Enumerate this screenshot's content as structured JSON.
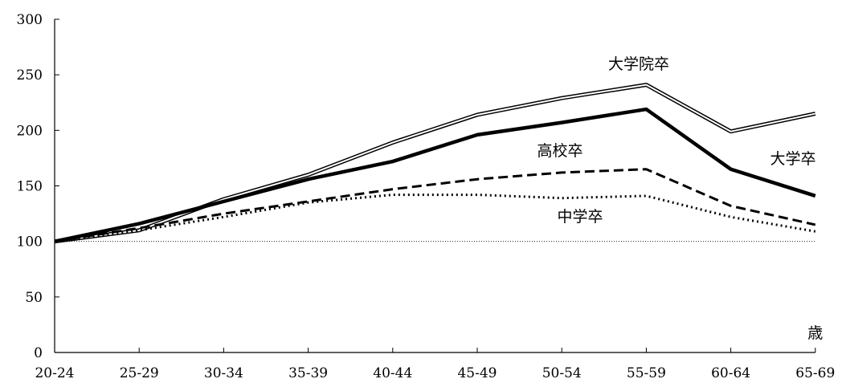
{
  "chart_data": {
    "type": "line",
    "title": "",
    "xlabel": "",
    "ylabel": "",
    "x_unit_label": "歳",
    "categories": [
      "20-24",
      "25-29",
      "30-34",
      "35-39",
      "40-44",
      "45-49",
      "50-54",
      "55-59",
      "60-64",
      "65-69"
    ],
    "ylim": [
      0,
      300
    ],
    "yticks": [
      0,
      50,
      100,
      150,
      200,
      250,
      300
    ],
    "grid": false,
    "reference_line": 100,
    "legend": "none (series labelled inline)",
    "series": [
      {
        "name": "大学院卒",
        "style": "double",
        "values": [
          100,
          110,
          138,
          160,
          189,
          214,
          229,
          241,
          199,
          215
        ]
      },
      {
        "name": "大学卒",
        "style": "thick",
        "values": [
          100,
          116,
          136,
          156,
          172,
          196,
          207,
          219,
          165,
          141
        ]
      },
      {
        "name": "高校卒",
        "style": "dashed",
        "values": [
          100,
          112,
          125,
          136,
          147,
          156,
          162,
          165,
          132,
          115
        ]
      },
      {
        "name": "中学卒",
        "style": "dotted",
        "values": [
          100,
          110,
          122,
          135,
          142,
          142,
          139,
          141,
          122,
          109
        ]
      }
    ]
  }
}
